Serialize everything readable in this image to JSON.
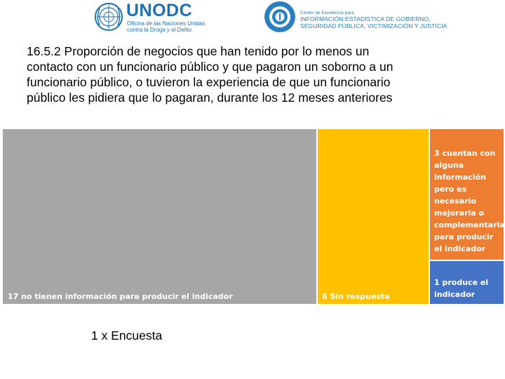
{
  "header": {
    "unodc_logo": {
      "name": "UNODC",
      "subtitle_lines": [
        "Oficina de las Naciones Unidas",
        "contra la Droga y el Delito"
      ]
    },
    "ce_logo": {
      "line1": "Centro de Excelencia para",
      "line2": "INFORMACIÓN ESTADÍSTICA DE GOBIERNO,",
      "line3": "SEGURIDAD PÚBLICA, VICTIMIZACIÓN Y JUSTICIA"
    }
  },
  "title_lines": [
    "16.5.2 Proporción de negocios que han tenido por lo menos un",
    "contacto con un funcionario público y que pagaron un soborno a un",
    "funcionario público, o tuvieron la experiencia de que un funcionario",
    "público les pidiera que lo pagaran, durante los 12 meses anteriores"
  ],
  "treemap": {
    "tiles": [
      {
        "label": "17 no tienen información para producir el indicador",
        "value": 17,
        "color": "#a6a6a6"
      },
      {
        "label": "6 Sin respuesta",
        "value": 6,
        "color": "#ffc000"
      },
      {
        "label": "3 cuentan con alguna información pero es necesario mejorarla o complementarla para producir el indicador",
        "value": 3,
        "color": "#ed7d31"
      },
      {
        "label": "1 produce el indicador",
        "value": 1,
        "color": "#4472c4"
      }
    ]
  },
  "footer": "1 x Encuesta"
}
